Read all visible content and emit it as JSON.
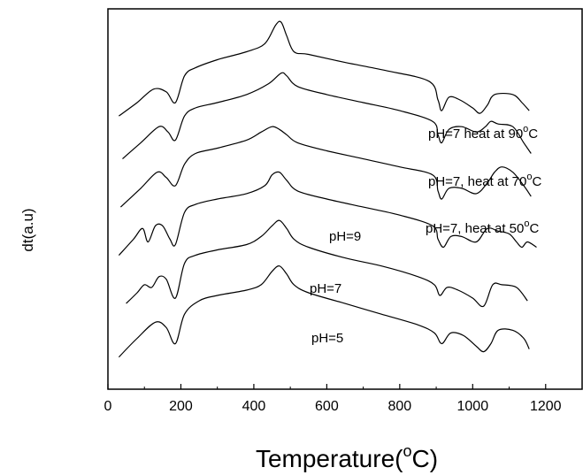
{
  "chart_data": {
    "type": "line",
    "xlabel": "Temperature(",
    "xlabel_degree": "o",
    "xlabel_unit": "C)",
    "ylabel": "dt(a.u)",
    "xlim": [
      0,
      1300
    ],
    "xticks": [
      0,
      200,
      400,
      600,
      800,
      1000,
      1200
    ],
    "y_tick_labels": false,
    "legend": "none",
    "grid": false,
    "series": [
      {
        "label_parts": [
          "pH=7 heat at 90",
          "o",
          "C"
        ],
        "x": [
          30,
          80,
          125,
          160,
          185,
          210,
          240,
          300,
          380,
          430,
          460,
          475,
          490,
          510,
          550,
          650,
          760,
          880,
          905,
          915,
          935,
          965,
          1000,
          1020,
          1040,
          1060,
          1110,
          1135,
          1155
        ],
        "y": [
          6.1,
          6.35,
          6.6,
          6.55,
          6.35,
          6.85,
          7.0,
          7.15,
          7.3,
          7.45,
          7.8,
          7.85,
          7.6,
          7.3,
          7.25,
          7.1,
          6.95,
          6.75,
          6.4,
          6.2,
          6.45,
          6.4,
          6.25,
          6.15,
          6.3,
          6.5,
          6.5,
          6.35,
          6.2
        ]
      },
      {
        "label_parts": [
          "pH=7, heat at 70",
          "o",
          "C"
        ],
        "x": [
          40,
          90,
          140,
          165,
          185,
          210,
          240,
          300,
          380,
          440,
          475,
          490,
          520,
          600,
          700,
          800,
          890,
          905,
          915,
          935,
          970,
          1010,
          1035,
          1050,
          1070,
          1110,
          1140,
          1160
        ],
        "y": [
          5.3,
          5.6,
          5.9,
          5.8,
          5.65,
          6.1,
          6.25,
          6.35,
          6.5,
          6.7,
          6.9,
          6.85,
          6.65,
          6.5,
          6.35,
          6.2,
          6.0,
          5.75,
          5.6,
          5.85,
          5.9,
          5.8,
          5.9,
          6.0,
          5.95,
          5.9,
          5.6,
          5.4
        ]
      },
      {
        "label_parts": [
          "pH=7, heat at 50",
          "o",
          "C"
        ],
        "x": [
          35,
          90,
          135,
          160,
          185,
          210,
          240,
          300,
          380,
          420,
          450,
          470,
          490,
          520,
          600,
          700,
          800,
          890,
          905,
          915,
          935,
          970,
          1010,
          1040,
          1060,
          1080,
          1110,
          1140,
          1160
        ],
        "y": [
          4.4,
          4.75,
          5.05,
          4.95,
          4.8,
          5.2,
          5.4,
          5.5,
          5.65,
          5.8,
          5.9,
          5.85,
          5.75,
          5.6,
          5.45,
          5.3,
          5.15,
          5.0,
          4.7,
          4.55,
          4.75,
          4.75,
          4.65,
          4.85,
          5.05,
          5.15,
          5.05,
          4.8,
          4.6
        ]
      },
      {
        "label_parts": [
          "pH=9",
          "",
          ""
        ],
        "x": [
          30,
          70,
          95,
          110,
          130,
          150,
          170,
          185,
          210,
          240,
          300,
          380,
          430,
          450,
          470,
          490,
          520,
          600,
          700,
          800,
          890,
          905,
          920,
          940,
          970,
          1010,
          1040,
          1070,
          1100,
          1120,
          1135,
          1150,
          1175
        ],
        "y": [
          3.5,
          3.8,
          4.0,
          3.75,
          4.05,
          4.05,
          3.8,
          3.7,
          4.3,
          4.45,
          4.55,
          4.65,
          4.8,
          5.0,
          5.05,
          4.9,
          4.7,
          4.55,
          4.4,
          4.25,
          4.05,
          3.8,
          3.65,
          3.85,
          3.85,
          3.75,
          4.0,
          3.95,
          3.9,
          3.75,
          3.65,
          3.75,
          3.65
        ]
      },
      {
        "label_parts": [
          "pH=7",
          "",
          ""
        ],
        "x": [
          50,
          80,
          100,
          120,
          140,
          160,
          185,
          210,
          240,
          300,
          380,
          420,
          450,
          470,
          490,
          510,
          550,
          650,
          750,
          850,
          895,
          910,
          930,
          960,
          1000,
          1030,
          1055,
          1080,
          1120,
          1150
        ],
        "y": [
          2.6,
          2.8,
          2.95,
          2.9,
          3.1,
          3.05,
          2.7,
          3.35,
          3.5,
          3.6,
          3.7,
          3.85,
          4.05,
          4.15,
          4.0,
          3.8,
          3.65,
          3.45,
          3.3,
          3.1,
          2.95,
          2.75,
          2.9,
          2.85,
          2.7,
          2.55,
          2.95,
          2.95,
          2.9,
          2.65
        ]
      },
      {
        "label_parts": [
          "pH=5",
          "",
          ""
        ],
        "x": [
          30,
          80,
          130,
          160,
          185,
          210,
          250,
          300,
          380,
          420,
          450,
          470,
          490,
          510,
          550,
          650,
          750,
          850,
          895,
          915,
          940,
          975,
          1010,
          1030,
          1050,
          1070,
          1110,
          1140,
          1155
        ],
        "y": [
          1.6,
          1.95,
          2.25,
          2.15,
          1.85,
          2.4,
          2.65,
          2.75,
          2.85,
          2.95,
          3.2,
          3.3,
          3.15,
          2.95,
          2.8,
          2.6,
          2.4,
          2.2,
          2.05,
          1.85,
          2.05,
          2.0,
          1.8,
          1.7,
          1.85,
          2.1,
          2.1,
          1.95,
          1.75
        ]
      }
    ]
  }
}
